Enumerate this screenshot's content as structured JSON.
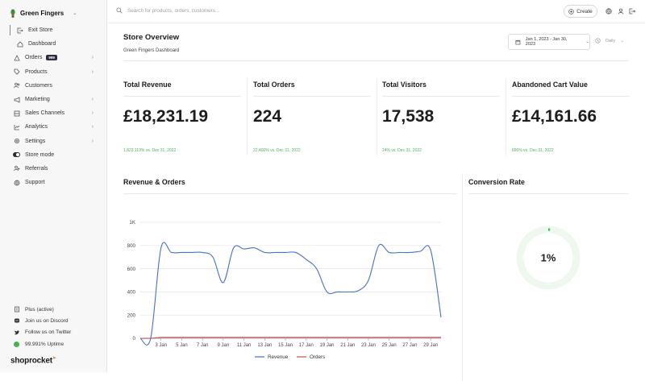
{
  "app": {
    "store_name": "Green Fingers",
    "logo_text": "shoprocket",
    "colors": {
      "accent": "#4472c4",
      "success": "#5aa962",
      "orders_line": "#c0504d",
      "dark": "#2b2f3a"
    }
  },
  "sidebar": {
    "exit_label": "Exit Store",
    "items": [
      {
        "label": "Dashboard",
        "icon": "home-icon"
      },
      {
        "label": "Orders",
        "icon": "orders-icon",
        "badge": "999",
        "chevron": true
      },
      {
        "label": "Products",
        "icon": "tag-icon",
        "chevron": true
      },
      {
        "label": "Customers",
        "icon": "users-icon"
      },
      {
        "label": "Marketing",
        "icon": "megaphone-icon",
        "chevron": true
      },
      {
        "label": "Sales Channels",
        "icon": "channels-icon",
        "chevron": true
      },
      {
        "label": "Analytics",
        "icon": "chart-icon",
        "chevron": true
      },
      {
        "label": "Settings",
        "icon": "gear-icon",
        "chevron": true
      },
      {
        "label": "Store mode",
        "icon": "toggle-icon"
      },
      {
        "label": "Referrals",
        "icon": "referral-icon"
      },
      {
        "label": "Support",
        "icon": "globe-icon"
      }
    ],
    "footer": [
      {
        "label": "Plus (active)",
        "icon": "plan-icon"
      },
      {
        "label": "Join us on Discord",
        "icon": "discord-icon"
      },
      {
        "label": "Follow us on Twitter",
        "icon": "twitter-icon"
      },
      {
        "label": "99.991% Uptime",
        "icon": "status-dot-icon"
      }
    ]
  },
  "topbar": {
    "search_placeholder": "Search for products, orders, customers...",
    "create_label": "Create"
  },
  "header": {
    "title": "Store Overview",
    "subtitle": "Green Fingers Dashboard",
    "date_range": "Jan 1, 2023 - Jan 30, 2023",
    "granularity": "Daily"
  },
  "kpis": [
    {
      "label": "Total Revenue",
      "value": "£18,231.19",
      "change": "1,823,119% vs. Dec 31, 2022"
    },
    {
      "label": "Total Orders",
      "value": "224",
      "change": "22,400% vs. Dec 31, 2022"
    },
    {
      "label": "Total Visitors",
      "value": "17,538",
      "change": "24% vs. Dec 31, 2022"
    },
    {
      "label": "Abandoned Cart Value",
      "value": "£14,161.66",
      "change": "890% vs. Dec 31, 2022"
    }
  ],
  "revenue_section": {
    "title": "Revenue & Orders"
  },
  "conversion_section": {
    "title": "Conversion Rate",
    "value": "1%",
    "fraction": 0.01
  },
  "chart_data": {
    "type": "line",
    "title": "Revenue & Orders",
    "x": [
      1,
      2,
      3,
      4,
      5,
      6,
      7,
      8,
      9,
      10,
      11,
      12,
      13,
      14,
      15,
      16,
      17,
      18,
      19,
      20,
      21,
      22,
      23,
      24,
      25,
      26,
      27,
      28,
      29,
      30
    ],
    "tick_labels": [
      "3 Jan",
      "5 Jan",
      "7 Jan",
      "9 Jan",
      "11 Jan",
      "13 Jan",
      "15 Jan",
      "17 Jan",
      "19 Jan",
      "21 Jan",
      "23 Jan",
      "25 Jan",
      "27 Jan",
      "29 Jan"
    ],
    "tick_days": [
      3,
      5,
      7,
      9,
      11,
      13,
      15,
      17,
      19,
      21,
      23,
      25,
      27,
      29
    ],
    "y_ticks": [
      "0",
      "200",
      "400",
      "600",
      "800",
      "1K"
    ],
    "y_tick_values": [
      0,
      200,
      400,
      600,
      800,
      1000
    ],
    "ylim": [
      0,
      1000
    ],
    "xlim": [
      1,
      30
    ],
    "series": [
      {
        "name": "Revenue",
        "color": "#4472c4",
        "values": [
          0,
          0,
          780,
          740,
          740,
          740,
          740,
          700,
          480,
          780,
          770,
          780,
          740,
          740,
          740,
          740,
          680,
          600,
          400,
          400,
          400,
          410,
          500,
          800,
          740,
          740,
          740,
          750,
          760,
          180
        ]
      },
      {
        "name": "Orders",
        "color": "#c0504d",
        "values": [
          0,
          0,
          8,
          8,
          8,
          8,
          8,
          8,
          8,
          8,
          8,
          8,
          8,
          8,
          8,
          8,
          8,
          8,
          8,
          8,
          8,
          8,
          8,
          8,
          8,
          8,
          8,
          8,
          8,
          8
        ]
      }
    ],
    "legend": [
      "Revenue",
      "Orders"
    ],
    "legend_position": "bottom",
    "grid": true
  }
}
